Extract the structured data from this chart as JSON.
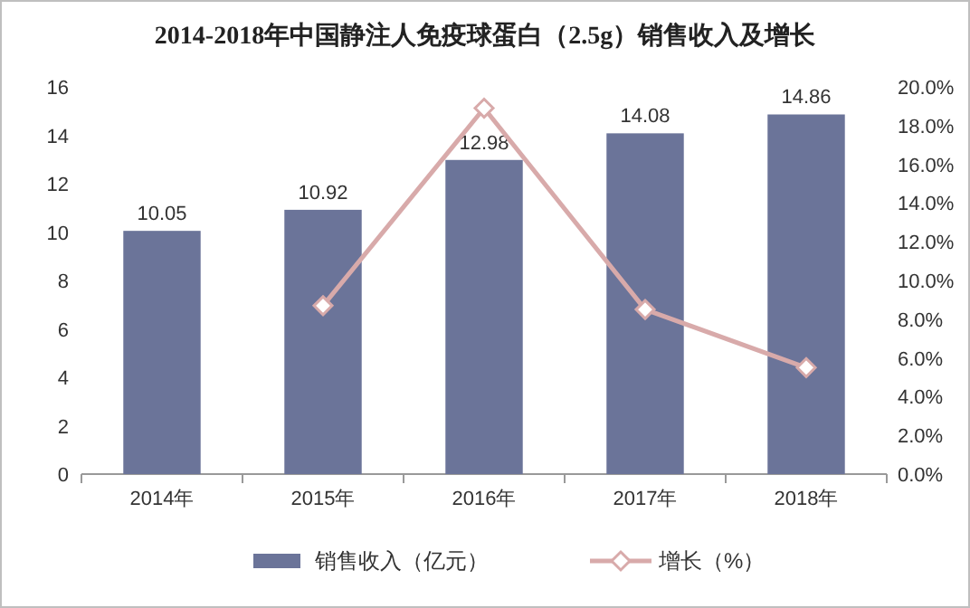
{
  "chart_data": {
    "type": "bar",
    "title": "2014-2018年中国静注人免疫球蛋白（2.5g）销售收入及增长",
    "categories": [
      "2014年",
      "2015年",
      "2016年",
      "2017年",
      "2018年"
    ],
    "series": [
      {
        "name": "销售收入（亿元）",
        "color": "#6b7499",
        "values": [
          10.05,
          10.92,
          12.98,
          14.08,
          14.86
        ],
        "value_labels": [
          "10.05",
          "10.92",
          "12.98",
          "14.08",
          "14.86"
        ]
      },
      {
        "name": "增长（%）",
        "type": "line",
        "axis": "y2",
        "color": "#d8aaaa",
        "marker": "diamond",
        "line_style": "solid",
        "values": [
          null,
          8.7,
          18.9,
          8.5,
          5.5
        ]
      }
    ],
    "ylim": [
      0,
      16
    ],
    "yticks": [
      0,
      2,
      4,
      6,
      8,
      10,
      12,
      14,
      16
    ],
    "y2lim": [
      0,
      20
    ],
    "y2ticks": [
      {
        "value": 0,
        "label": "0.0%"
      },
      {
        "value": 2,
        "label": "2.0%"
      },
      {
        "value": 4,
        "label": "4.0%"
      },
      {
        "value": 6,
        "label": "6.0%"
      },
      {
        "value": 8,
        "label": "8.0%"
      },
      {
        "value": 10,
        "label": "10.0%"
      },
      {
        "value": 12,
        "label": "12.0%"
      },
      {
        "value": 14,
        "label": "14.0%"
      },
      {
        "value": 16,
        "label": "16.0%"
      },
      {
        "value": 18,
        "label": "18.0%"
      },
      {
        "value": 20,
        "label": "20.0%"
      }
    ],
    "grid": false,
    "legend": "bottom"
  }
}
